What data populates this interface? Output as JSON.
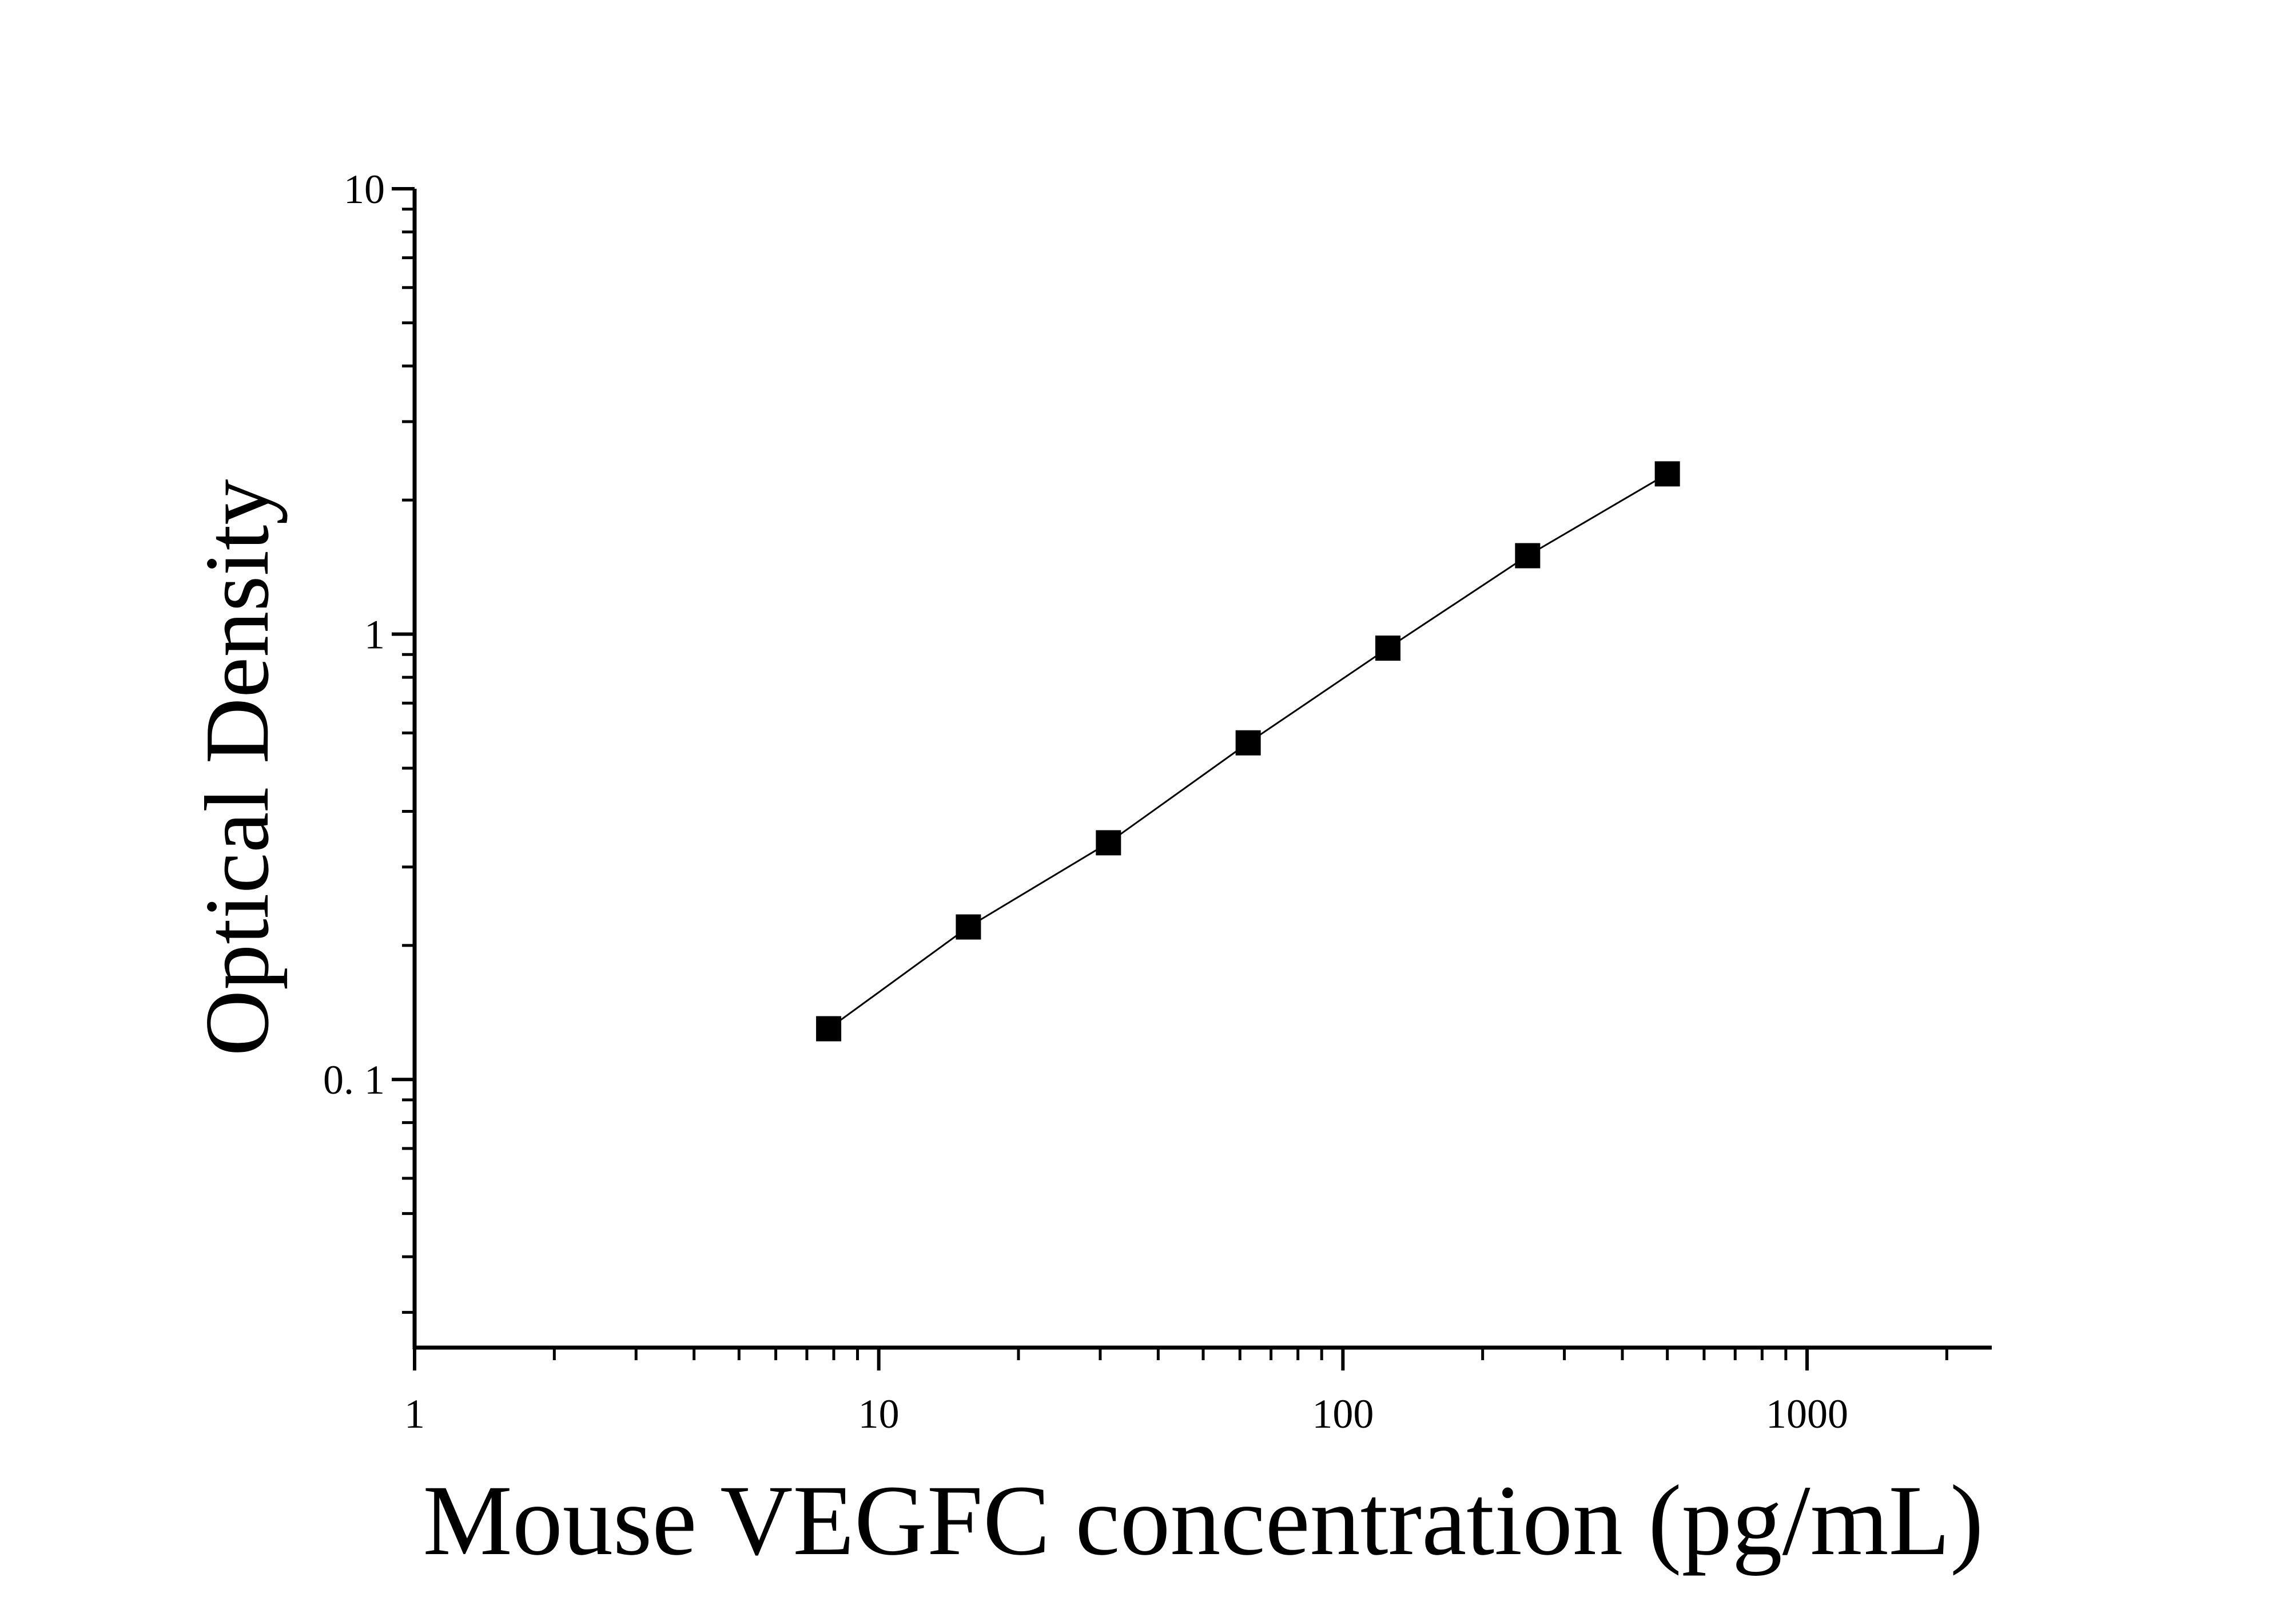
{
  "chart_data": {
    "type": "line",
    "x_label": "Mouse VEGFC concentration (pg/mL)",
    "y_label": "Optical Density",
    "x": [
      7.8,
      15.6,
      31.25,
      62.5,
      125,
      250,
      500
    ],
    "series": [
      {
        "color": "#000000",
        "values": [
          0.13,
          0.22,
          0.34,
          0.57,
          0.93,
          1.5,
          2.29
        ]
      }
    ],
    "xlim": [
      1,
      2500
    ],
    "ylim": [
      0.025,
      10
    ],
    "xlog": true,
    "ylog": true,
    "xticks": [
      1,
      10,
      100,
      1000
    ],
    "yticks": [
      {
        "value": 0.1,
        "label": "0. 1"
      },
      1,
      10
    ],
    "xminorticks": [
      2,
      3,
      4,
      5,
      6,
      7,
      8,
      9,
      20,
      30,
      40,
      50,
      60,
      70,
      80,
      90,
      200,
      300,
      400,
      500,
      600,
      700,
      800,
      900,
      2000
    ],
    "yminorticks": [
      0.03,
      0.04,
      0.05,
      0.06,
      0.07,
      0.08,
      0.09,
      0.2,
      0.3,
      0.4,
      0.5,
      0.6,
      0.7,
      0.8,
      0.9,
      2,
      3,
      4,
      5,
      6,
      7,
      8,
      9
    ]
  }
}
